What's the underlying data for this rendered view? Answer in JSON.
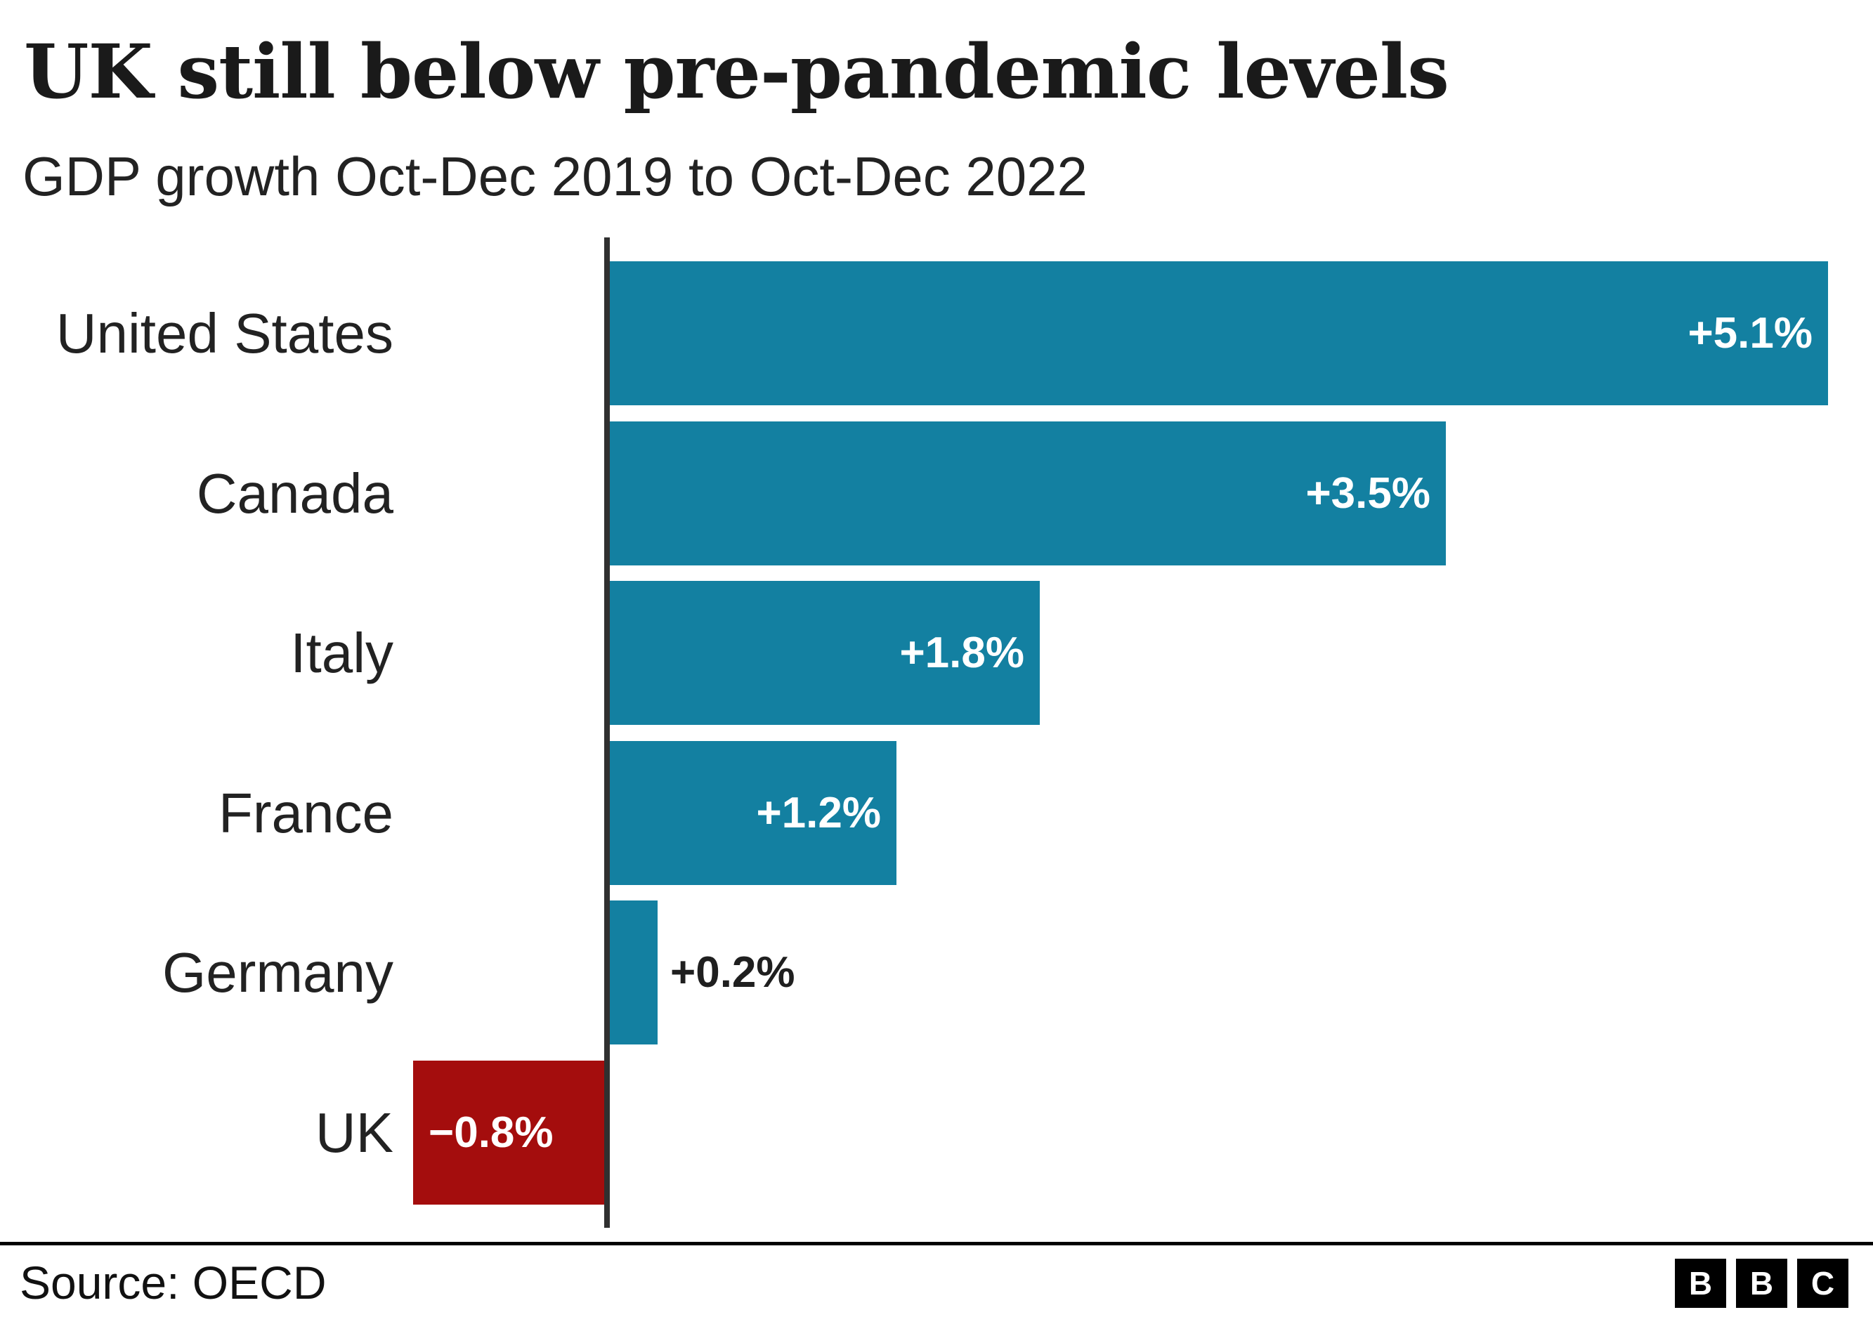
{
  "header": {
    "title": "UK still below pre-pandemic levels",
    "subtitle": "GDP growth Oct-Dec 2019 to Oct-Dec 2022"
  },
  "chart_data": {
    "type": "bar",
    "orientation": "horizontal",
    "title": "UK still below pre-pandemic levels",
    "subtitle": "GDP growth Oct-Dec 2019 to Oct-Dec 2022",
    "categories": [
      "United States",
      "Canada",
      "Italy",
      "France",
      "Germany",
      "UK"
    ],
    "values": [
      5.1,
      3.5,
      1.8,
      1.2,
      0.2,
      -0.8
    ],
    "value_labels": [
      "+5.1%",
      "+3.5%",
      "+1.8%",
      "+1.2%",
      "+0.2%",
      "−0.8%"
    ],
    "xlabel": "",
    "ylabel": "",
    "xlim": [
      -0.9,
      5.3
    ],
    "grid": false,
    "legend": false,
    "colors": {
      "positive_bar": "#1380A1",
      "negative_bar": "#A40D0D",
      "value_label_inside": "#ffffff",
      "value_label_outside": "#1f1f1f",
      "axis_line": "#303030"
    }
  },
  "footer": {
    "source": "Source: OECD",
    "logo_letters": [
      "B",
      "B",
      "C"
    ]
  }
}
